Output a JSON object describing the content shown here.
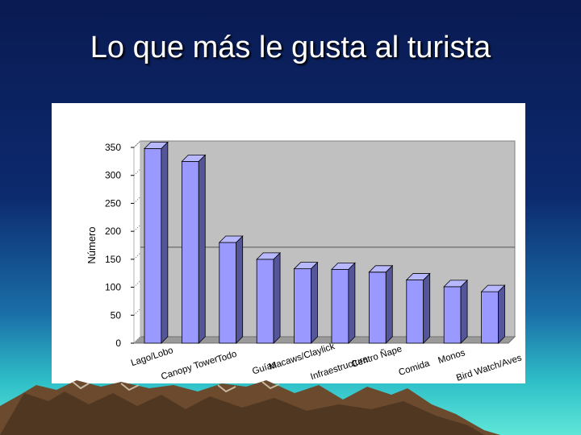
{
  "slide": {
    "title": "Lo que más le gusta al turista"
  },
  "colors": {
    "bar_front": "#9999ff",
    "bar_side": "#55559a",
    "bar_top": "#b8b8ff",
    "plot_wall": "#c0c0c0",
    "plot_floor": "#9a9a9a"
  },
  "chart_data": {
    "type": "bar",
    "title": "",
    "xlabel": "",
    "ylabel": "Número",
    "ylim": [
      0,
      350
    ],
    "yticks": [
      0,
      50,
      100,
      150,
      200,
      250,
      300,
      350
    ],
    "grid": false,
    "legend": "none",
    "categories": [
      "Lago/Lobo",
      "Canopy Tower",
      "Todo",
      "Guías",
      "Macaws/Claylick",
      "Infraestructura",
      "Centro Ñape",
      "Comida",
      "Monos",
      "Bird Watch/Aves"
    ],
    "values": [
      348,
      325,
      180,
      150,
      133,
      132,
      127,
      113,
      101,
      92
    ]
  }
}
